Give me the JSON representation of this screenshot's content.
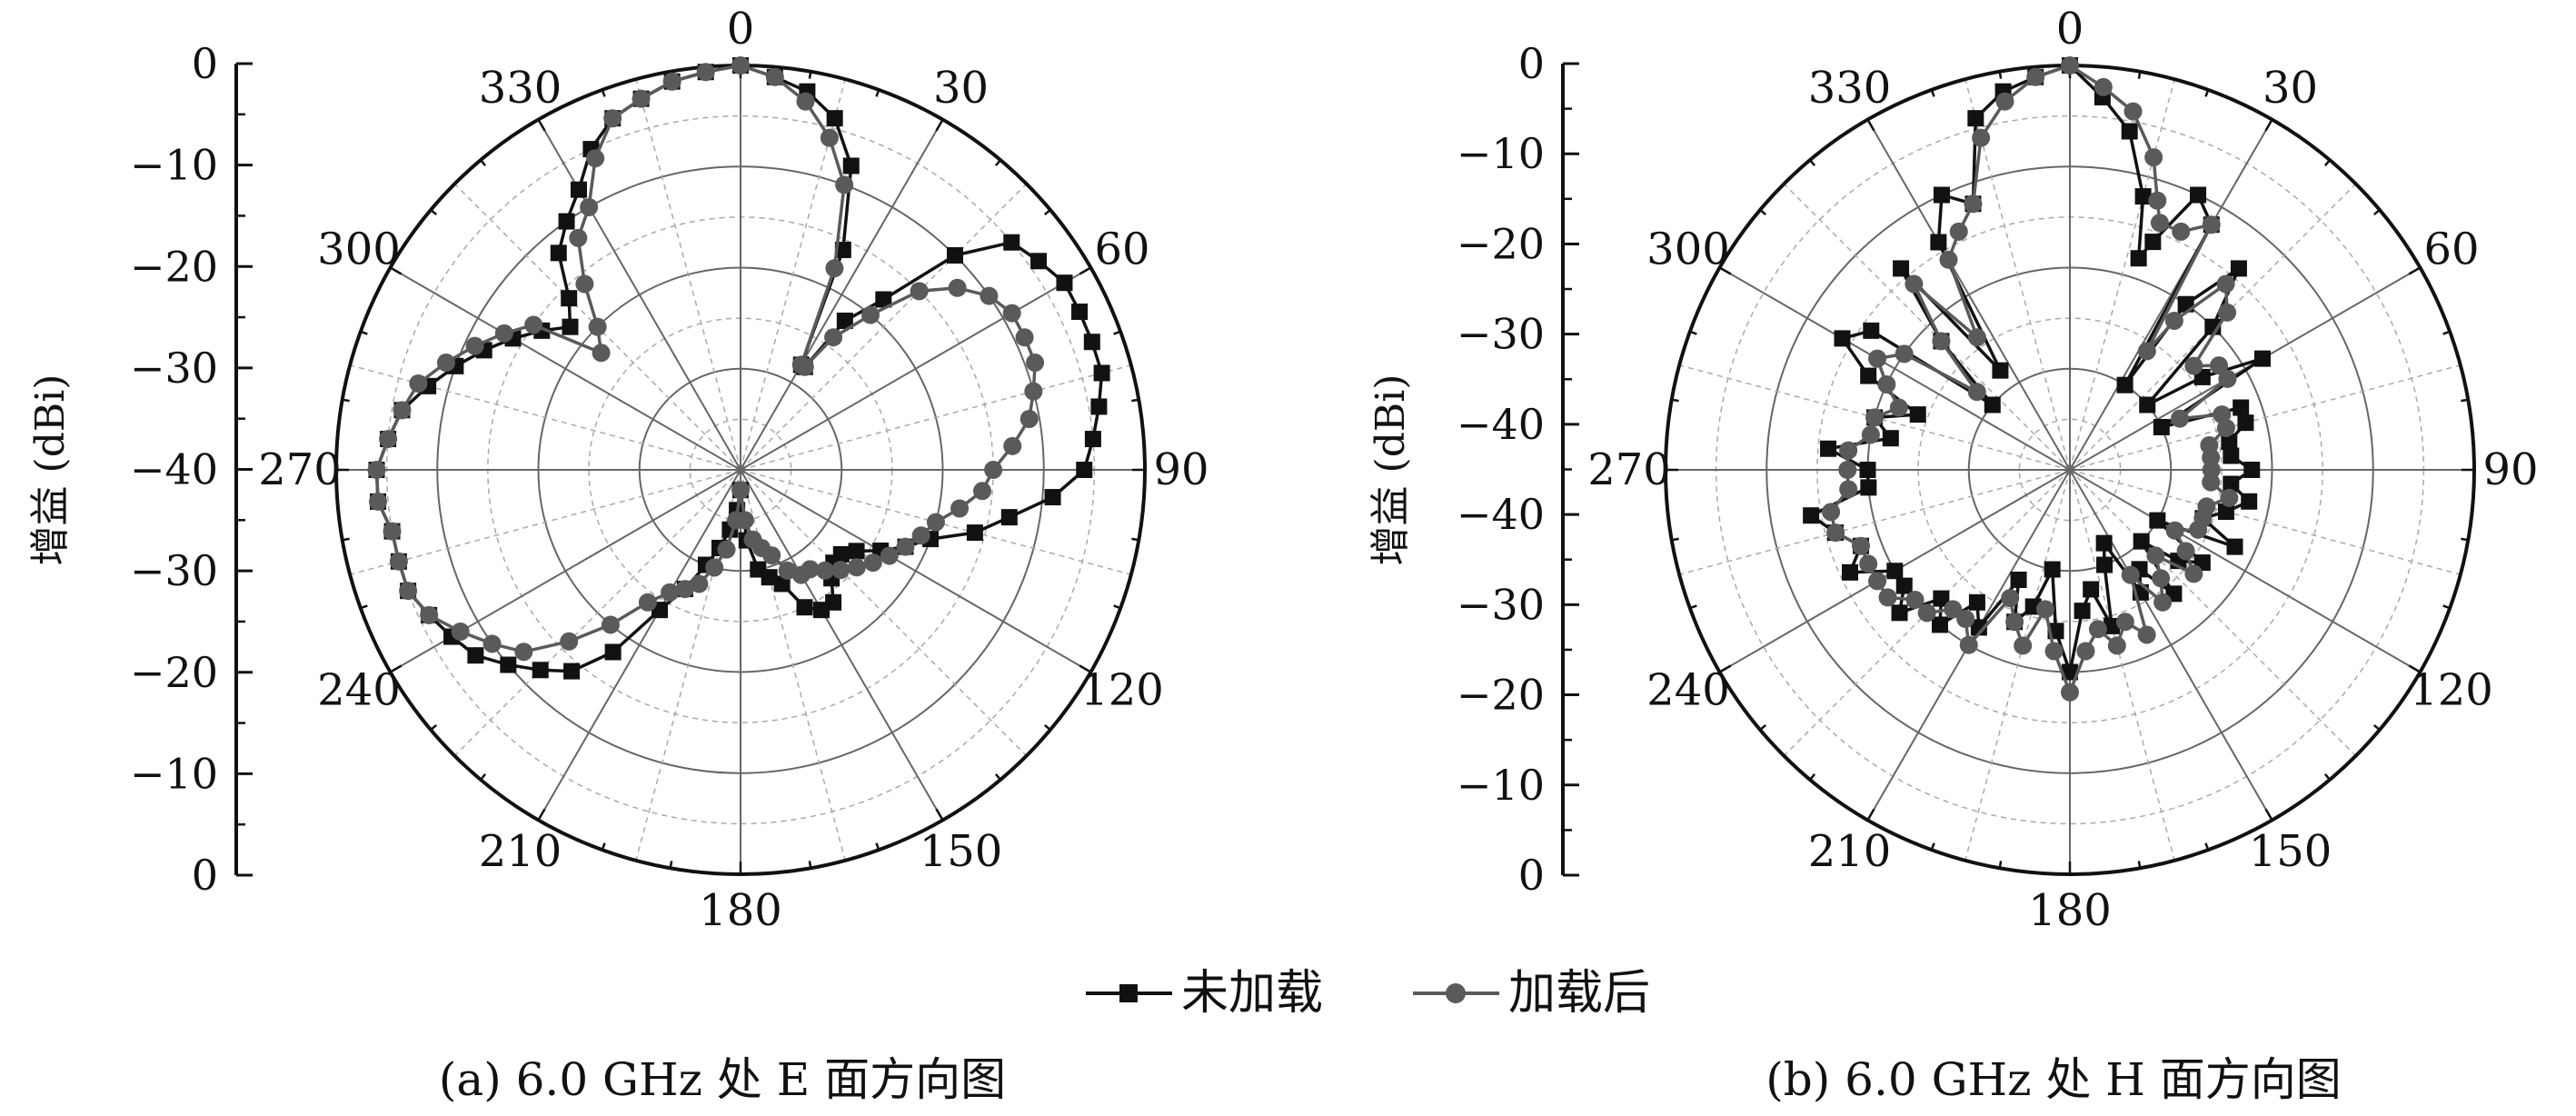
{
  "figure": {
    "legend": {
      "series_a": "未加载",
      "series_b": "加载后"
    }
  },
  "colors": {
    "series_a": "#111111",
    "series_b": "#5a5a5a",
    "grid_major": "#666666",
    "grid_minor": "#aaaaaa"
  },
  "chart_data": [
    {
      "type": "polar",
      "caption": "(a) 6.0 GHz 处 E 面方向图",
      "ylabel": "增益 (dBi)",
      "radial_range": [
        -40,
        0
      ],
      "radial_ticks": [
        0,
        -10,
        -20,
        -30,
        -40,
        -30,
        -20,
        -10,
        0
      ],
      "angle_ticks": [
        0,
        30,
        60,
        90,
        120,
        150,
        180,
        210,
        240,
        270,
        300,
        330
      ],
      "grid": true,
      "series": [
        {
          "name": "未加载",
          "marker": "square",
          "angles": [
            0,
            5,
            10,
            15,
            20,
            25,
            30,
            32,
            35,
            40,
            45,
            50,
            55,
            60,
            65,
            70,
            75,
            80,
            85,
            90,
            95,
            100,
            105,
            110,
            115,
            120,
            125,
            130,
            135,
            140,
            145,
            150,
            155,
            160,
            165,
            170,
            175,
            180,
            185,
            190,
            195,
            200,
            205,
            210,
            215,
            220,
            225,
            230,
            235,
            240,
            245,
            250,
            255,
            260,
            265,
            270,
            275,
            280,
            285,
            290,
            295,
            300,
            305,
            310,
            315,
            320,
            325,
            330,
            335,
            340,
            345,
            350,
            355
          ],
          "values": [
            0,
            -1,
            -2,
            -4,
            -8,
            -16,
            -28,
            -28,
            -22,
            -18,
            -10,
            -5,
            -4,
            -3,
            -3,
            -3,
            -3,
            -4,
            -5,
            -6,
            -9,
            -13,
            -16,
            -20,
            -22,
            -24,
            -26,
            -27,
            -27,
            -26,
            -24,
            -24,
            -25,
            -28,
            -29,
            -30,
            -33,
            -38,
            -36,
            -34,
            -32,
            -30,
            -27,
            -24,
            -18,
            -14,
            -12,
            -10,
            -8,
            -7,
            -6,
            -5,
            -5,
            -5,
            -4,
            -4,
            -5,
            -6,
            -8,
            -10,
            -12,
            -14,
            -16,
            -18,
            -16,
            -12,
            -10,
            -8,
            -5,
            -3,
            -2,
            -1,
            -0.5
          ]
        },
        {
          "name": "加载后",
          "marker": "circle",
          "angles": [
            0,
            5,
            10,
            15,
            20,
            25,
            30,
            32,
            35,
            40,
            45,
            50,
            55,
            60,
            65,
            70,
            75,
            80,
            85,
            90,
            95,
            100,
            105,
            110,
            115,
            120,
            125,
            130,
            135,
            140,
            145,
            150,
            155,
            160,
            165,
            170,
            175,
            180,
            185,
            190,
            195,
            200,
            205,
            210,
            215,
            220,
            225,
            230,
            235,
            240,
            245,
            250,
            255,
            260,
            265,
            270,
            275,
            280,
            285,
            290,
            295,
            300,
            305,
            310,
            315,
            320,
            325,
            330,
            335,
            340,
            345,
            350,
            355
          ],
          "values": [
            0,
            -1,
            -3,
            -6,
            -10,
            -18,
            -28,
            -28,
            -24,
            -20,
            -15,
            -12,
            -10,
            -9,
            -9,
            -9,
            -10,
            -11,
            -13,
            -15,
            -16,
            -18,
            -20,
            -21,
            -22,
            -23,
            -24,
            -25,
            -26,
            -27,
            -28,
            -28,
            -29,
            -31,
            -32,
            -33,
            -35,
            -38,
            -35,
            -32,
            -30,
            -28,
            -27,
            -26,
            -24,
            -20,
            -16,
            -12,
            -10,
            -8,
            -6,
            -5,
            -5,
            -5,
            -4,
            -4,
            -5,
            -6,
            -7,
            -9,
            -11,
            -13,
            -15,
            -22,
            -20,
            -16,
            -12,
            -10,
            -6,
            -3,
            -2,
            -1,
            -0.5
          ]
        }
      ]
    },
    {
      "type": "polar",
      "caption": "(b) 6.0 GHz 处 H 面方向图",
      "ylabel": "增益 (dBi)",
      "radial_range": [
        -40,
        0
      ],
      "radial_ticks": [
        0,
        -10,
        -20,
        -30,
        -40,
        -40,
        -30,
        -20,
        -10,
        0
      ],
      "angle_ticks": [
        0,
        30,
        60,
        90,
        120,
        150,
        180,
        210,
        240,
        270,
        300,
        330
      ],
      "grid": true,
      "series": [
        {
          "name": "未加载",
          "marker": "square",
          "angles": [
            0,
            5,
            10,
            15,
            18,
            20,
            25,
            30,
            33,
            35,
            40,
            45,
            50,
            55,
            60,
            65,
            70,
            75,
            80,
            85,
            90,
            95,
            100,
            105,
            110,
            115,
            120,
            125,
            130,
            135,
            140,
            145,
            150,
            155,
            160,
            165,
            170,
            175,
            180,
            185,
            190,
            195,
            200,
            205,
            210,
            215,
            220,
            225,
            230,
            235,
            240,
            245,
            250,
            255,
            260,
            265,
            270,
            275,
            280,
            285,
            290,
            295,
            300,
            305,
            310,
            315,
            320,
            325,
            330,
            335,
            340,
            345,
            350,
            355
          ],
          "values": [
            0,
            -3,
            -6,
            -12,
            -18,
            -16,
            -10,
            -12,
            -30,
            -20,
            -14,
            -20,
            -30,
            -24,
            -18,
            -30,
            -22,
            -22,
            -24,
            -24,
            -22,
            -24,
            -22,
            -24,
            -26,
            -22,
            -30,
            -24,
            -26,
            -30,
            -24,
            -28,
            -26,
            -32,
            -30,
            -24,
            -28,
            -26,
            -20,
            -24,
            -30,
            -26,
            -24,
            -28,
            -22,
            -24,
            -20,
            -22,
            -18,
            -20,
            -20,
            -16,
            -18,
            -16,
            -14,
            -20,
            -20,
            -16,
            -22,
            -20,
            -24,
            -18,
            -14,
            -16,
            -30,
            -22,
            -14,
            -28,
            -14,
            -10,
            -12,
            -4,
            -2,
            -1
          ]
        },
        {
          "name": "加载后",
          "marker": "circle",
          "angles": [
            0,
            5,
            10,
            15,
            18,
            20,
            25,
            30,
            33,
            35,
            40,
            45,
            50,
            55,
            60,
            65,
            70,
            75,
            80,
            85,
            90,
            95,
            100,
            105,
            110,
            115,
            120,
            125,
            130,
            135,
            140,
            145,
            150,
            155,
            160,
            165,
            170,
            175,
            180,
            185,
            190,
            195,
            200,
            205,
            210,
            215,
            220,
            225,
            230,
            235,
            240,
            245,
            250,
            255,
            260,
            265,
            270,
            275,
            280,
            285,
            290,
            295,
            300,
            305,
            310,
            315,
            320,
            325,
            330,
            335,
            340,
            345,
            350,
            355
          ],
          "values": [
            0,
            -2,
            -4,
            -8,
            -12,
            -14,
            -14,
            -12,
            -26,
            -22,
            -16,
            -18,
            -24,
            -22,
            -22,
            -28,
            -24,
            -24,
            -26,
            -26,
            -26,
            -26,
            -24,
            -26,
            -26,
            -26,
            -28,
            -26,
            -24,
            -28,
            -26,
            -24,
            -28,
            -22,
            -24,
            -22,
            -24,
            -22,
            -18,
            -22,
            -26,
            -22,
            -24,
            -26,
            -20,
            -22,
            -22,
            -20,
            -20,
            -18,
            -18,
            -18,
            -18,
            -16,
            -16,
            -18,
            -18,
            -18,
            -20,
            -20,
            -22,
            -20,
            -18,
            -20,
            -28,
            -22,
            -16,
            -24,
            -16,
            -14,
            -12,
            -6,
            -3,
            -1
          ]
        }
      ]
    }
  ]
}
